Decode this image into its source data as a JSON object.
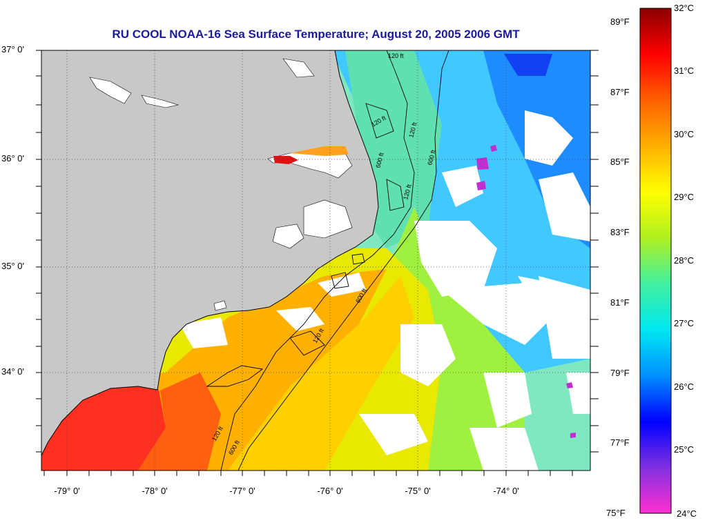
{
  "title": "RU COOL  NOAA-16  Sea Surface Temperature;  August 20, 2005 2006 GMT",
  "latitude_labels": [
    "37° 0'",
    "36° 0'",
    "35° 0'",
    "34° 0'"
  ],
  "longitude_labels": [
    "-79° 0'",
    "-78° 0'",
    "-77° 0'",
    "-76° 0'",
    "-75° 0'",
    "-74° 0'"
  ],
  "colorbar": {
    "celsius_labels": [
      "32°C",
      "31°C",
      "30°C",
      "29°C",
      "28°C",
      "27°C",
      "26°C",
      "25°C",
      "24°C"
    ],
    "fahrenheit_labels": [
      "89°F",
      "87°F",
      "85°F",
      "83°F",
      "81°F",
      "79°F",
      "77°F",
      "75°F"
    ],
    "range_celsius": [
      24,
      32
    ],
    "stops": [
      "#ff30d0",
      "#8030e0",
      "#0000ff",
      "#0090ff",
      "#00e8f0",
      "#40f0a0",
      "#b0f020",
      "#ffff00",
      "#ffb000",
      "#ff6000",
      "#ff0000",
      "#8a0000"
    ]
  },
  "contour_labels": [
    "120 ft",
    "120 ft",
    "600 ft",
    "120 ft",
    "600 ft",
    "120 ft",
    "120 ft",
    "600 ft",
    "120 ft",
    "600 ft"
  ],
  "colors": {
    "land": "#c8c8c8",
    "no_data": "#ffffff",
    "title": "#1a1aa0",
    "grid": "#555555"
  }
}
